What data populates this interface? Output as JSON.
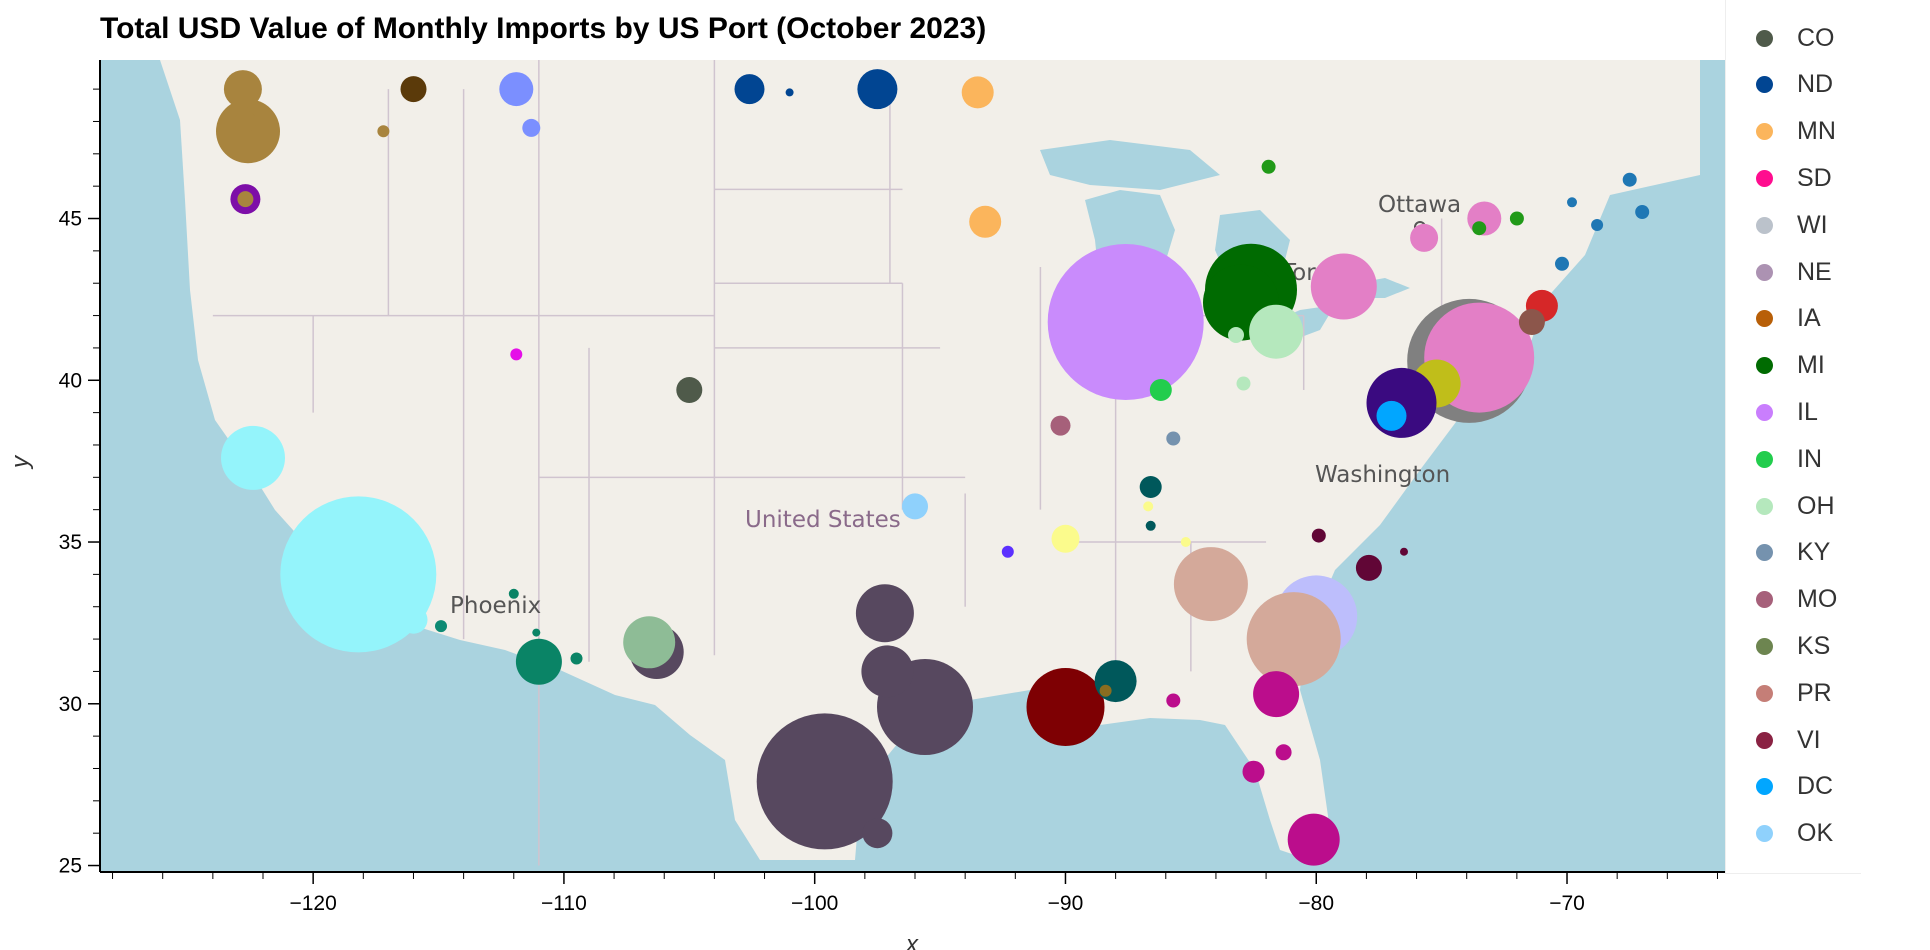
{
  "chart_data": {
    "type": "scatter",
    "title": "Total USD Value of Monthly Imports by US Port (October 2023)",
    "xlabel": "x",
    "ylabel": "y",
    "xlim": [
      -128.5,
      -63.7
    ],
    "ylim": [
      24.8,
      49.9
    ],
    "x_ticks": [
      -120,
      -110,
      -100,
      -90,
      -80,
      -70
    ],
    "y_ticks": [
      25,
      30,
      35,
      40,
      45
    ],
    "x_tick_labels": [
      "−120",
      "−110",
      "−100",
      "−90",
      "−80",
      "−70"
    ],
    "y_tick_labels": [
      "25",
      "30",
      "35",
      "40",
      "45"
    ],
    "legend_position": "right",
    "basemap": {
      "land_color": "#f2efe9",
      "water_color": "#aad3df",
      "place_labels": [
        "Ottawa",
        "Toronto",
        "Washington",
        "United States",
        "Phoenix"
      ]
    },
    "legend": [
      {
        "name": "CO",
        "color": "#4f5a4a"
      },
      {
        "name": "ND",
        "color": "#014592"
      },
      {
        "name": "MN",
        "color": "#fbb55c"
      },
      {
        "name": "SD",
        "color": "#ff0d8f"
      },
      {
        "name": "WI",
        "color": "#bbc2cb"
      },
      {
        "name": "NE",
        "color": "#ac92b2"
      },
      {
        "name": "IA",
        "color": "#b85f08"
      },
      {
        "name": "MI",
        "color": "#006b01"
      },
      {
        "name": "IL",
        "color": "#c97efd"
      },
      {
        "name": "IN",
        "color": "#22cd4d"
      },
      {
        "name": "OH",
        "color": "#b5e8bd"
      },
      {
        "name": "KY",
        "color": "#7592ae"
      },
      {
        "name": "MO",
        "color": "#a6607a"
      },
      {
        "name": "KS",
        "color": "#6d8550"
      },
      {
        "name": "PR",
        "color": "#c57e77"
      },
      {
        "name": "VI",
        "color": "#8a2243"
      },
      {
        "name": "DC",
        "color": "#01a6ff"
      },
      {
        "name": "OK",
        "color": "#8fd1fc"
      }
    ],
    "points": [
      {
        "x": -118.2,
        "y": 34.0,
        "r": 78,
        "color": "#94f4fb"
      },
      {
        "x": -122.4,
        "y": 37.6,
        "r": 32,
        "color": "#94f4fb"
      },
      {
        "x": -116.0,
        "y": 32.6,
        "r": 14,
        "color": "#94f4fb"
      },
      {
        "x": -114.9,
        "y": 32.4,
        "r": 6,
        "color": "#0d8a74"
      },
      {
        "x": -111.0,
        "y": 31.3,
        "r": 23,
        "color": "#0a8466"
      },
      {
        "x": -109.5,
        "y": 31.4,
        "r": 6,
        "color": "#0a8466"
      },
      {
        "x": -111.1,
        "y": 32.2,
        "r": 4,
        "color": "#0a8466"
      },
      {
        "x": -112.0,
        "y": 33.4,
        "r": 5,
        "color": "#0a8466"
      },
      {
        "x": -106.3,
        "y": 31.6,
        "r": 27,
        "color": "#57485f"
      },
      {
        "x": -106.6,
        "y": 31.9,
        "r": 26,
        "color": "#8ebc96"
      },
      {
        "x": -99.6,
        "y": 27.6,
        "r": 68,
        "color": "#57485f"
      },
      {
        "x": -95.6,
        "y": 29.9,
        "r": 48,
        "color": "#57485f"
      },
      {
        "x": -97.1,
        "y": 31.0,
        "r": 26,
        "color": "#57485f"
      },
      {
        "x": -97.2,
        "y": 32.8,
        "r": 29,
        "color": "#57485f"
      },
      {
        "x": -97.5,
        "y": 26.0,
        "r": 15,
        "color": "#57485f"
      },
      {
        "x": -90.0,
        "y": 29.9,
        "r": 39,
        "color": "#7e0003"
      },
      {
        "x": -88.0,
        "y": 30.7,
        "r": 21,
        "color": "#00585b"
      },
      {
        "x": -88.4,
        "y": 30.4,
        "r": 6,
        "color": "#8a6d20"
      },
      {
        "x": -87.6,
        "y": 41.8,
        "r": 78,
        "color": "#c98bfc"
      },
      {
        "x": -82.6,
        "y": 42.8,
        "r": 46,
        "color": "#006b01"
      },
      {
        "x": -83.0,
        "y": 42.4,
        "r": 38,
        "color": "#006b01"
      },
      {
        "x": -81.6,
        "y": 41.5,
        "r": 27,
        "color": "#b5e8bd"
      },
      {
        "x": -83.2,
        "y": 41.4,
        "r": 8,
        "color": "#b5e8bd"
      },
      {
        "x": -82.9,
        "y": 39.9,
        "r": 7,
        "color": "#b5e8bd"
      },
      {
        "x": -78.9,
        "y": 42.9,
        "r": 33,
        "color": "#e37fc6"
      },
      {
        "x": -73.9,
        "y": 40.6,
        "r": 62,
        "color": "#808080"
      },
      {
        "x": -73.5,
        "y": 40.7,
        "r": 55,
        "color": "#e37fc6"
      },
      {
        "x": -75.2,
        "y": 39.9,
        "r": 24,
        "color": "#c0be1a"
      },
      {
        "x": -76.6,
        "y": 39.3,
        "r": 35,
        "color": "#3a0a80"
      },
      {
        "x": -77.0,
        "y": 38.9,
        "r": 15,
        "color": "#01a6ff"
      },
      {
        "x": -71.0,
        "y": 42.3,
        "r": 16,
        "color": "#d62728"
      },
      {
        "x": -71.4,
        "y": 41.8,
        "r": 13,
        "color": "#8c564b"
      },
      {
        "x": -80.0,
        "y": 32.7,
        "r": 41,
        "color": "#bdbefc"
      },
      {
        "x": -80.9,
        "y": 32.0,
        "r": 47,
        "color": "#d4a99a"
      },
      {
        "x": -84.2,
        "y": 33.7,
        "r": 37,
        "color": "#d4a99a"
      },
      {
        "x": -81.6,
        "y": 30.3,
        "r": 23,
        "color": "#bb0d8c"
      },
      {
        "x": -80.1,
        "y": 25.8,
        "r": 26,
        "color": "#bb0d8c"
      },
      {
        "x": -82.5,
        "y": 27.9,
        "r": 11,
        "color": "#bb0d8c"
      },
      {
        "x": -81.3,
        "y": 28.5,
        "r": 8,
        "color": "#bb0d8c"
      },
      {
        "x": -85.7,
        "y": 30.1,
        "r": 7,
        "color": "#bb0d8c"
      },
      {
        "x": -77.9,
        "y": 34.2,
        "r": 13,
        "color": "#610636"
      },
      {
        "x": -79.9,
        "y": 35.2,
        "r": 7,
        "color": "#610636"
      },
      {
        "x": -76.5,
        "y": 34.7,
        "r": 4,
        "color": "#610636"
      },
      {
        "x": -86.6,
        "y": 36.7,
        "r": 11,
        "color": "#00585b"
      },
      {
        "x": -86.6,
        "y": 35.5,
        "r": 5,
        "color": "#00585b"
      },
      {
        "x": -90.0,
        "y": 35.1,
        "r": 14,
        "color": "#fbfb8c"
      },
      {
        "x": -86.7,
        "y": 36.1,
        "r": 5,
        "color": "#fbfb8c"
      },
      {
        "x": -85.2,
        "y": 35.0,
        "r": 5,
        "color": "#fbfb8c"
      },
      {
        "x": -86.2,
        "y": 39.7,
        "r": 11,
        "color": "#22cd4d"
      },
      {
        "x": -85.7,
        "y": 38.2,
        "r": 7,
        "color": "#7592ae"
      },
      {
        "x": -90.2,
        "y": 38.6,
        "r": 10,
        "color": "#a6607a"
      },
      {
        "x": -92.3,
        "y": 34.7,
        "r": 6,
        "color": "#5c30ff"
      },
      {
        "x": -96.0,
        "y": 36.1,
        "r": 13,
        "color": "#8fd1fc"
      },
      {
        "x": -93.2,
        "y": 44.9,
        "r": 16,
        "color": "#fbb55c"
      },
      {
        "x": -93.5,
        "y": 48.9,
        "r": 16,
        "color": "#fbb55c"
      },
      {
        "x": -97.5,
        "y": 49.0,
        "r": 20,
        "color": "#014592"
      },
      {
        "x": -102.6,
        "y": 49.0,
        "r": 15,
        "color": "#014592"
      },
      {
        "x": -101.0,
        "y": 48.9,
        "r": 4,
        "color": "#014592"
      },
      {
        "x": -105.0,
        "y": 39.7,
        "r": 13,
        "color": "#4f5a4a"
      },
      {
        "x": -111.9,
        "y": 40.8,
        "r": 6,
        "color": "#e50fe8"
      },
      {
        "x": -111.9,
        "y": 49.0,
        "r": 17,
        "color": "#7b8fff"
      },
      {
        "x": -111.3,
        "y": 47.8,
        "r": 9,
        "color": "#7b8fff"
      },
      {
        "x": -116.0,
        "y": 49.0,
        "r": 13,
        "color": "#5b3a0a"
      },
      {
        "x": -122.6,
        "y": 47.7,
        "r": 32,
        "color": "#a8843e"
      },
      {
        "x": -122.8,
        "y": 49.0,
        "r": 19,
        "color": "#a8843e"
      },
      {
        "x": -122.7,
        "y": 48.0,
        "r": 11,
        "color": "#a8843e"
      },
      {
        "x": -117.2,
        "y": 47.7,
        "r": 6,
        "color": "#a8843e"
      },
      {
        "x": -122.7,
        "y": 45.6,
        "r": 15,
        "color": "#7d0ea8"
      },
      {
        "x": -122.7,
        "y": 45.6,
        "r": 8,
        "color": "#a8843e"
      },
      {
        "x": -81.9,
        "y": 46.6,
        "r": 7,
        "color": "#219a18"
      },
      {
        "x": -73.3,
        "y": 45.0,
        "r": 17,
        "color": "#e37fc6"
      },
      {
        "x": -75.7,
        "y": 44.4,
        "r": 14,
        "color": "#e37fc6"
      },
      {
        "x": -73.5,
        "y": 44.7,
        "r": 7,
        "color": "#219a18"
      },
      {
        "x": -72.0,
        "y": 45.0,
        "r": 7,
        "color": "#219a18"
      },
      {
        "x": -69.8,
        "y": 45.5,
        "r": 5,
        "color": "#1f77b4"
      },
      {
        "x": -68.8,
        "y": 44.8,
        "r": 6,
        "color": "#1f77b4"
      },
      {
        "x": -67.5,
        "y": 46.2,
        "r": 7,
        "color": "#1f77b4"
      },
      {
        "x": -67.0,
        "y": 45.2,
        "r": 7,
        "color": "#1f77b4"
      },
      {
        "x": -70.2,
        "y": 43.6,
        "r": 7,
        "color": "#1f77b4"
      }
    ]
  }
}
